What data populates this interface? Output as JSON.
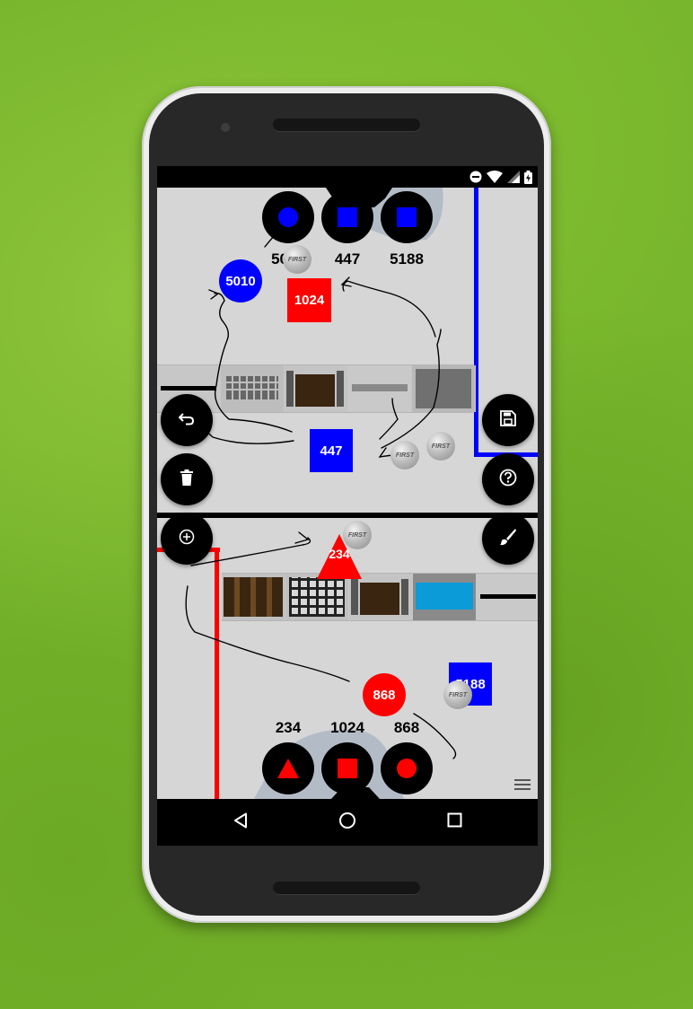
{
  "status_bar": {
    "icons": [
      "do-not-disturb-icon",
      "wifi-icon",
      "cell-signal-icon",
      "battery-charging-icon"
    ]
  },
  "top_controls": {
    "labels": [
      "5010",
      "447",
      "5188"
    ],
    "shapes": [
      "circle",
      "square",
      "square"
    ],
    "color": "#0000ff"
  },
  "bottom_controls": {
    "labels": [
      "234",
      "1024",
      "868"
    ],
    "shapes": [
      "triangle",
      "square",
      "circle"
    ],
    "color": "#ff0000"
  },
  "robots": {
    "r5010": "5010",
    "r1024": "1024",
    "r447": "447",
    "r234": "234",
    "r868": "868",
    "r5188": "5188"
  },
  "first_logo_text": "FIRST",
  "fabs": {
    "left": [
      "undo-icon",
      "delete-icon",
      "add-icon"
    ],
    "right": [
      "save-icon",
      "help-icon",
      "brush-icon"
    ]
  },
  "nav": [
    "back-icon",
    "home-icon",
    "recents-icon"
  ],
  "colors": {
    "blue_alliance": "#0000ff",
    "red_alliance": "#ff0000",
    "field": "#d6d6d6",
    "control_bg": "#000000"
  }
}
